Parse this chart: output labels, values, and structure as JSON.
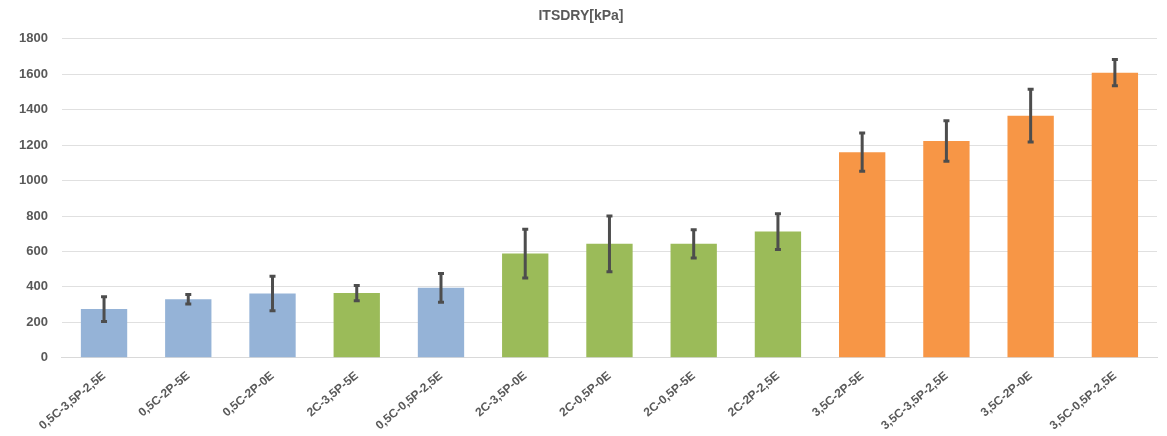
{
  "chart_data": {
    "type": "bar",
    "title": "ITSDRY[kPa]",
    "categories": [
      "0,5C-3,5P-2,5E",
      "0,5C-2P-5E",
      "0,5C-2P-0E",
      "2C-3,5P-5E",
      "0,5C-0,5P-2,5E",
      "2C-3,5P-0E",
      "2C-0,5P-0E",
      "2C-0,5P-5E",
      "2C-2P-2,5E",
      "3,5C-2P-5E",
      "3,5C-3,5P-2,5E",
      "3,5C-2P-0E",
      "3,5C-0,5P-2,5E"
    ],
    "values": [
      275,
      330,
      363,
      365,
      395,
      588,
      643,
      643,
      712,
      1160,
      1223,
      1366,
      1609
    ],
    "errors": [
      70,
      27,
      97,
      43,
      81,
      138,
      157,
      80,
      101,
      108,
      114,
      149,
      74
    ],
    "colors": [
      "#95b3d7",
      "#95b3d7",
      "#95b3d7",
      "#9bbb59",
      "#95b3d7",
      "#9bbb59",
      "#9bbb59",
      "#9bbb59",
      "#9bbb59",
      "#f79646",
      "#f79646",
      "#f79646",
      "#f79646"
    ],
    "ylim": [
      0,
      1800
    ],
    "yticks": [
      0,
      200,
      400,
      600,
      800,
      1000,
      1200,
      1400,
      1600,
      1800
    ],
    "grid": "y",
    "legend": false
  }
}
